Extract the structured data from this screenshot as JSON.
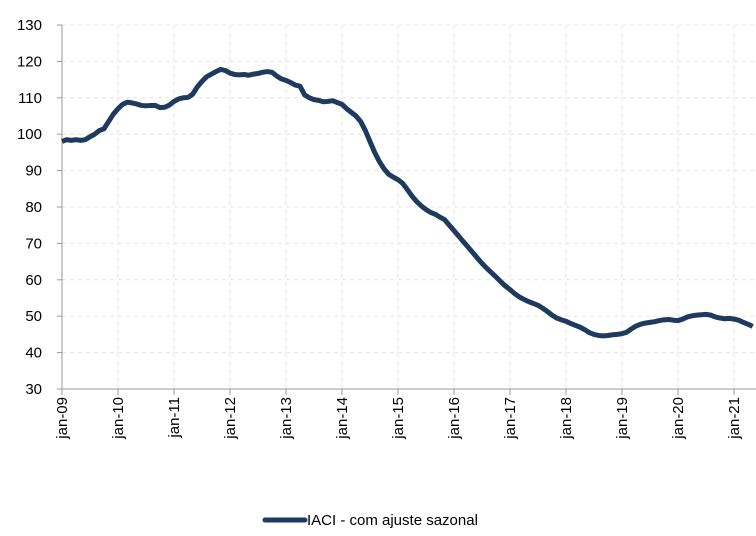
{
  "chart_data": {
    "type": "line",
    "categories": [
      "jan-09",
      null,
      null,
      null,
      null,
      null,
      null,
      null,
      null,
      null,
      null,
      null,
      "jan-10",
      null,
      null,
      null,
      null,
      null,
      null,
      null,
      null,
      null,
      null,
      null,
      "jan-11",
      null,
      null,
      null,
      null,
      null,
      null,
      null,
      null,
      null,
      null,
      null,
      "jan-12",
      null,
      null,
      null,
      null,
      null,
      null,
      null,
      null,
      null,
      null,
      null,
      "jan-13",
      null,
      null,
      null,
      null,
      null,
      null,
      null,
      null,
      null,
      null,
      null,
      "jan-14",
      null,
      null,
      null,
      null,
      null,
      null,
      null,
      null,
      null,
      null,
      null,
      "jan-15",
      null,
      null,
      null,
      null,
      null,
      null,
      null,
      null,
      null,
      null,
      null,
      "jan-16",
      null,
      null,
      null,
      null,
      null,
      null,
      null,
      null,
      null,
      null,
      null,
      "jan-17",
      null,
      null,
      null,
      null,
      null,
      null,
      null,
      null,
      null,
      null,
      null,
      "jan-18",
      null,
      null,
      null,
      null,
      null,
      null,
      null,
      null,
      null,
      null,
      null,
      "jan-19",
      null,
      null,
      null,
      null,
      null,
      null,
      null,
      null,
      null,
      null,
      null,
      "jan-20",
      null,
      null,
      null,
      null,
      null,
      null,
      null,
      null,
      null,
      null,
      null,
      "jan-21",
      null,
      null,
      null,
      null
    ],
    "series": [
      {
        "name": "IACI - com ajuste sazonal",
        "color": "#1f3a5f",
        "values": [
          98,
          98.5,
          98.3,
          98.5,
          98.3,
          98.5,
          99.3,
          100,
          101,
          101.5,
          103.5,
          105.5,
          107,
          108.2,
          108.8,
          108.6,
          108.3,
          107.9,
          107.8,
          107.9,
          107.9,
          107.3,
          107.4,
          108,
          109,
          109.7,
          110,
          110.1,
          111,
          113,
          114.5,
          115.8,
          116.5,
          117.2,
          117.8,
          117.5,
          116.8,
          116.4,
          116.3,
          116.4,
          116.2,
          116.5,
          116.7,
          117,
          117.2,
          117,
          116,
          115.2,
          114.8,
          114.2,
          113.5,
          113.2,
          110.8,
          110,
          109.5,
          109.3,
          108.9,
          109,
          109.2,
          108.7,
          108.2,
          107,
          106,
          105,
          103.5,
          101,
          98,
          95,
          92.5,
          90.5,
          89,
          88.2,
          87.5,
          86.5,
          84.8,
          83,
          81.5,
          80.3,
          79.3,
          78.5,
          78,
          77.2,
          76.5,
          75,
          73.5,
          72,
          70.5,
          69,
          67.5,
          66,
          64.5,
          63.2,
          62,
          60.8,
          59.5,
          58.3,
          57.3,
          56.2,
          55.3,
          54.6,
          54,
          53.5,
          53,
          52.2,
          51.3,
          50.3,
          49.5,
          49,
          48.6,
          48,
          47.5,
          47,
          46.3,
          45.5,
          45,
          44.7,
          44.6,
          44.7,
          44.9,
          45,
          45.2,
          45.6,
          46.5,
          47.3,
          47.8,
          48.1,
          48.3,
          48.5,
          48.8,
          49,
          49.1,
          48.9,
          48.8,
          49.2,
          49.8,
          50.1,
          50.3,
          50.4,
          50.5,
          50.3,
          49.8,
          49.5,
          49.3,
          49.4,
          49.2,
          48.9,
          48.3,
          47.8,
          47.2
        ]
      }
    ],
    "ylim": [
      30,
      130
    ],
    "yticks": [
      30,
      40,
      50,
      60,
      70,
      80,
      90,
      100,
      110,
      120,
      130
    ],
    "grid": true
  }
}
